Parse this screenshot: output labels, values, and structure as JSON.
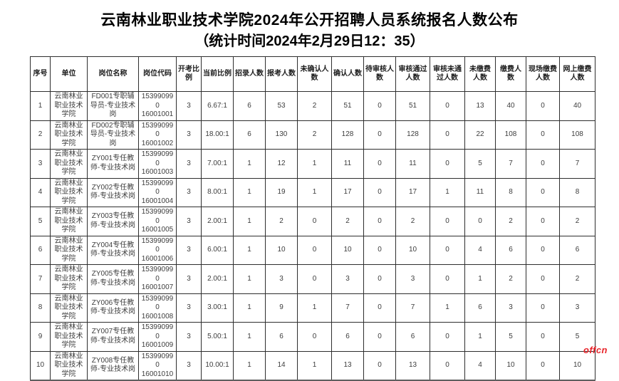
{
  "page": {
    "title_line1": "云南林业职业技术学院2024年公开招聘人员系统报名人数公布",
    "title_line2": "（统计时间2024年2月29日12：35）"
  },
  "colors": {
    "watermark_red": "#e8252b",
    "text_black": "#000000",
    "border_dark": "#2e2e2e"
  },
  "watermark_text": "offcn",
  "table": {
    "headers": [
      "序号",
      "单位",
      "岗位名称",
      "岗位代码",
      "开考比例",
      "当前比例",
      "招录人数",
      "报考人数",
      "未确认人数",
      "确认人数",
      "待审核人数",
      "审核通过人数",
      "审核未通过人数",
      "未缴费人数",
      "缴费人数",
      "现场缴费人数",
      "网上缴费人数"
    ],
    "code_column_index": 3,
    "rows": [
      [
        "1",
        "云南林业职业技术学院",
        "FD001专职辅导员-专业技术岗",
        "153990990\n16001001",
        "3",
        "6.67:1",
        "6",
        "53",
        "2",
        "51",
        "0",
        "51",
        "0",
        "13",
        "40",
        "0",
        "40"
      ],
      [
        "2",
        "云南林业职业技术学院",
        "FD002专职辅导员-专业技术岗",
        "153990990\n16001002",
        "3",
        "18.00:1",
        "6",
        "130",
        "2",
        "128",
        "0",
        "128",
        "0",
        "22",
        "108",
        "0",
        "108"
      ],
      [
        "3",
        "云南林业职业技术学院",
        "ZY001专任教师-专业技术岗",
        "153990990\n16001003",
        "3",
        "7.00:1",
        "1",
        "12",
        "1",
        "11",
        "0",
        "11",
        "0",
        "5",
        "7",
        "0",
        "7"
      ],
      [
        "4",
        "云南林业职业技术学院",
        "ZY002专任教师-专业技术岗",
        "153990990\n16001004",
        "3",
        "8.00:1",
        "1",
        "19",
        "1",
        "17",
        "0",
        "17",
        "1",
        "11",
        "8",
        "0",
        "8"
      ],
      [
        "5",
        "云南林业职业技术学院",
        "ZY003专任教师-专业技术岗",
        "153990990\n16001005",
        "3",
        "2.00:1",
        "1",
        "2",
        "0",
        "2",
        "0",
        "2",
        "0",
        "0",
        "2",
        "0",
        "2"
      ],
      [
        "6",
        "云南林业职业技术学院",
        "ZY004专任教师-专业技术岗",
        "153990990\n16001006",
        "3",
        "6.00:1",
        "1",
        "10",
        "0",
        "10",
        "0",
        "10",
        "0",
        "4",
        "6",
        "0",
        "6"
      ],
      [
        "7",
        "云南林业职业技术学院",
        "ZY005专任教师-专业技术岗",
        "153990990\n16001007",
        "3",
        "2.00:1",
        "1",
        "3",
        "0",
        "3",
        "0",
        "3",
        "0",
        "1",
        "2",
        "0",
        "2"
      ],
      [
        "8",
        "云南林业职业技术学院",
        "ZY006专任教师-专业技术岗",
        "153990990\n16001008",
        "3",
        "3.00:1",
        "1",
        "9",
        "1",
        "7",
        "0",
        "7",
        "1",
        "6",
        "3",
        "0",
        "3"
      ],
      [
        "9",
        "云南林业职业技术学院",
        "ZY007专任教师-专业技术岗",
        "153990990\n16001009",
        "3",
        "5.00:1",
        "1",
        "6",
        "0",
        "6",
        "0",
        "6",
        "0",
        "1",
        "5",
        "0",
        "5"
      ],
      [
        "10",
        "云南林业职业技术学院",
        "ZY008专任教师-专业技术岗",
        "153990990\n16001010",
        "3",
        "10.00:1",
        "1",
        "14",
        "1",
        "13",
        "0",
        "13",
        "0",
        "4",
        "10",
        "0",
        "10"
      ]
    ]
  }
}
